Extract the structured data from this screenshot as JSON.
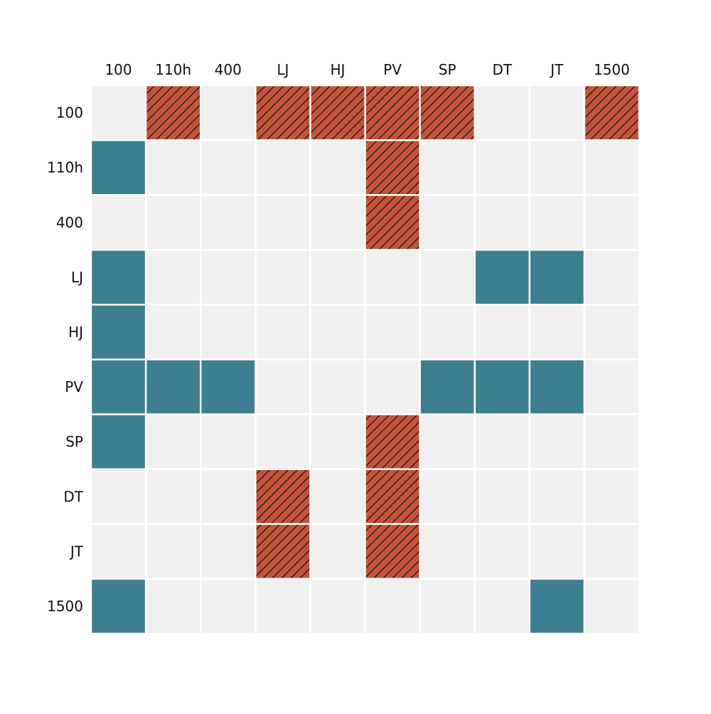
{
  "chart_data": {
    "type": "heatmap",
    "title": "",
    "xlabel": "",
    "ylabel": "",
    "legend": "none",
    "grid": false,
    "x_categories": [
      "100",
      "110h",
      "400",
      "LJ",
      "HJ",
      "PV",
      "SP",
      "DT",
      "JT",
      "1500"
    ],
    "y_categories": [
      "100",
      "110h",
      "400",
      "LJ",
      "HJ",
      "PV",
      "SP",
      "DT",
      "JT",
      "1500"
    ],
    "x_tick_position": "top",
    "value_key": {
      "0": "empty",
      "1": "teal",
      "2": "hatched-orange"
    },
    "matrix": [
      [
        0,
        2,
        0,
        2,
        2,
        2,
        2,
        0,
        0,
        2
      ],
      [
        1,
        0,
        0,
        0,
        0,
        2,
        0,
        0,
        0,
        0
      ],
      [
        0,
        0,
        0,
        0,
        0,
        2,
        0,
        0,
        0,
        0
      ],
      [
        1,
        0,
        0,
        0,
        0,
        0,
        0,
        1,
        1,
        0
      ],
      [
        1,
        0,
        0,
        0,
        0,
        0,
        0,
        0,
        0,
        0
      ],
      [
        1,
        1,
        1,
        0,
        0,
        0,
        1,
        1,
        1,
        0
      ],
      [
        1,
        0,
        0,
        0,
        0,
        2,
        0,
        0,
        0,
        0
      ],
      [
        0,
        0,
        0,
        2,
        0,
        2,
        0,
        0,
        0,
        0
      ],
      [
        0,
        0,
        0,
        2,
        0,
        2,
        0,
        0,
        0,
        0
      ],
      [
        1,
        0,
        0,
        0,
        0,
        0,
        0,
        0,
        1,
        0
      ]
    ],
    "colors": {
      "empty": "#f0f0f0",
      "teal": "#3d7f91",
      "hatched-orange": "#c4533a",
      "hatch": "#111111",
      "gridline": "#ffffff"
    }
  }
}
